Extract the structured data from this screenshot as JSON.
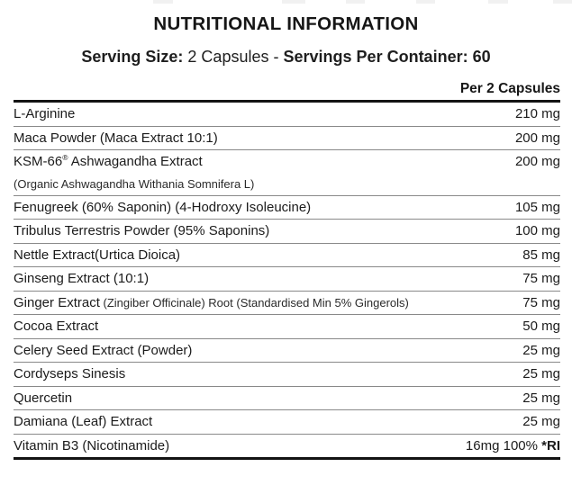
{
  "header": {
    "title": "NUTRITIONAL INFORMATION",
    "serving_size_label": "Serving Size:",
    "serving_size_value": "2 Capsules",
    "separator": "-",
    "servings_per_container_label": "Servings Per Container:",
    "servings_per_container_value": "60"
  },
  "table": {
    "column_header": "Per 2 Capsules",
    "rows": [
      {
        "label": "L-Arginine",
        "value": "210 mg"
      },
      {
        "label": "Maca Powder (Maca Extract 10:1)",
        "value": "200 mg"
      },
      {
        "label": "KSM-66® Ashwagandha Extract",
        "sub_label": "(Organic Ashwagandha Withania Somnifera L)",
        "value": "200 mg"
      },
      {
        "label": "Fenugreek (60% Saponin) (4-Hodroxy Isoleucine)",
        "value": "105 mg"
      },
      {
        "label": "Tribulus Terrestris Powder (95% Saponins)",
        "value": "100 mg"
      },
      {
        "label": "Nettle Extract(Urtica Dioica)",
        "value": "85 mg"
      },
      {
        "label": "Ginseng Extract (10:1)",
        "value": "75 mg"
      },
      {
        "label": "Ginger Extract",
        "label_small": "(Zingiber Officinale) Root (Standardised Min 5% Gingerols)",
        "value": "75 mg"
      },
      {
        "label": "Cocoa Extract",
        "value": "50 mg"
      },
      {
        "label": "Celery Seed Extract (Powder)",
        "value": "25 mg"
      },
      {
        "label": "Cordyseps Sinesis",
        "value": "25 mg"
      },
      {
        "label": "Quercetin",
        "value": "25 mg"
      },
      {
        "label": "Damiana (Leaf) Extract",
        "value": "25 mg"
      },
      {
        "label": "Vitamin B3 (Nicotinamide)",
        "value": "16mg 100%",
        "value_bold": "*RI"
      }
    ]
  },
  "colors": {
    "text": "#1b1b1b",
    "separator_line": "#898989",
    "heavy_rule": "#131313",
    "background": "#ffffff"
  }
}
